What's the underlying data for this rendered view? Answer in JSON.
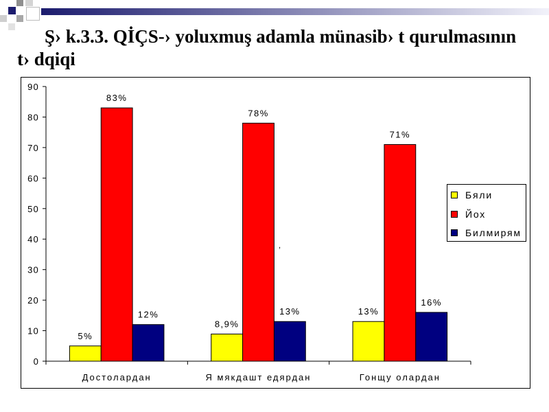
{
  "slide": {
    "title_line1": "Ş› k.3.3. QİÇS-› yoluxmuş adamla münasib› t qurulmasının",
    "title_line2": "t› dqiqi"
  },
  "colors": {
    "header_bar_start": "#1C1C6E",
    "header_bar_end": "#F2F2FA",
    "accent_navy": "#1C1C6E"
  },
  "chart_data": {
    "type": "bar",
    "categories": [
      "Достолардан",
      "Я мякдашт едярдан",
      "Гонщу олардан"
    ],
    "series": [
      {
        "name": "Бяли",
        "color": "#FFFF00",
        "values": [
          5,
          8.9,
          13
        ],
        "labels": [
          "5%",
          "8,9%",
          "13%"
        ]
      },
      {
        "name": "Йох",
        "color": "#FF0000",
        "values": [
          83,
          78,
          71
        ],
        "labels": [
          "83%",
          "78%",
          "71%"
        ]
      },
      {
        "name": "Билмирям",
        "color": "#000080",
        "values": [
          12,
          13,
          16
        ],
        "labels": [
          "12%",
          "13%",
          "16%"
        ]
      }
    ],
    "yticks": [
      0,
      10,
      20,
      30,
      40,
      50,
      60,
      70,
      80,
      90
    ],
    "ylim": [
      0,
      90
    ],
    "grid": false,
    "legend_position": "right",
    "annotations": [
      {
        "text": ","
      }
    ]
  }
}
